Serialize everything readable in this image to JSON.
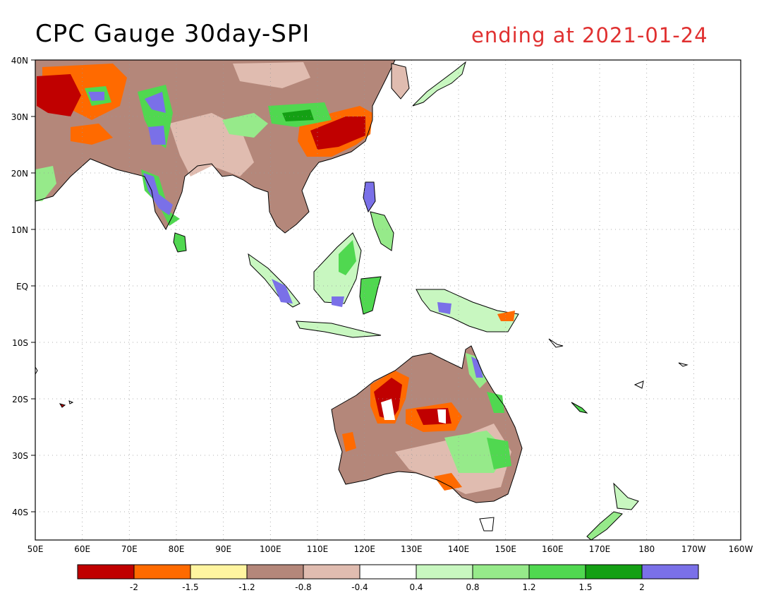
{
  "title": {
    "main": "CPC Gauge 30day-SPI",
    "date": "ending at 2021-01-24"
  },
  "map": {
    "lon_range": [
      "50E",
      "160W"
    ],
    "lat_range": [
      "45S",
      "40N"
    ],
    "gridlines": true,
    "lat_labels": [
      "40N",
      "30N",
      "20N",
      "10N",
      "EQ",
      "10S",
      "20S",
      "30S",
      "40S"
    ],
    "lon_labels": [
      "50E",
      "60E",
      "70E",
      "80E",
      "90E",
      "100E",
      "110E",
      "120E",
      "130E",
      "140E",
      "150E",
      "160E",
      "170E",
      "180",
      "170W",
      "160W"
    ]
  },
  "colorbar": {
    "colors": [
      "#c00000",
      "#ff6a00",
      "#fff5a0",
      "#b4877a",
      "#e0bcb0",
      "#ffffff",
      "#c8f7c0",
      "#96ea8a",
      "#50d850",
      "#14a014",
      "#7a70e8"
    ],
    "labels": [
      "-2",
      "-1.5",
      "-1.2",
      "-0.8",
      "-0.4",
      "0.4",
      "0.8",
      "1.2",
      "1.5",
      "2"
    ]
  }
}
